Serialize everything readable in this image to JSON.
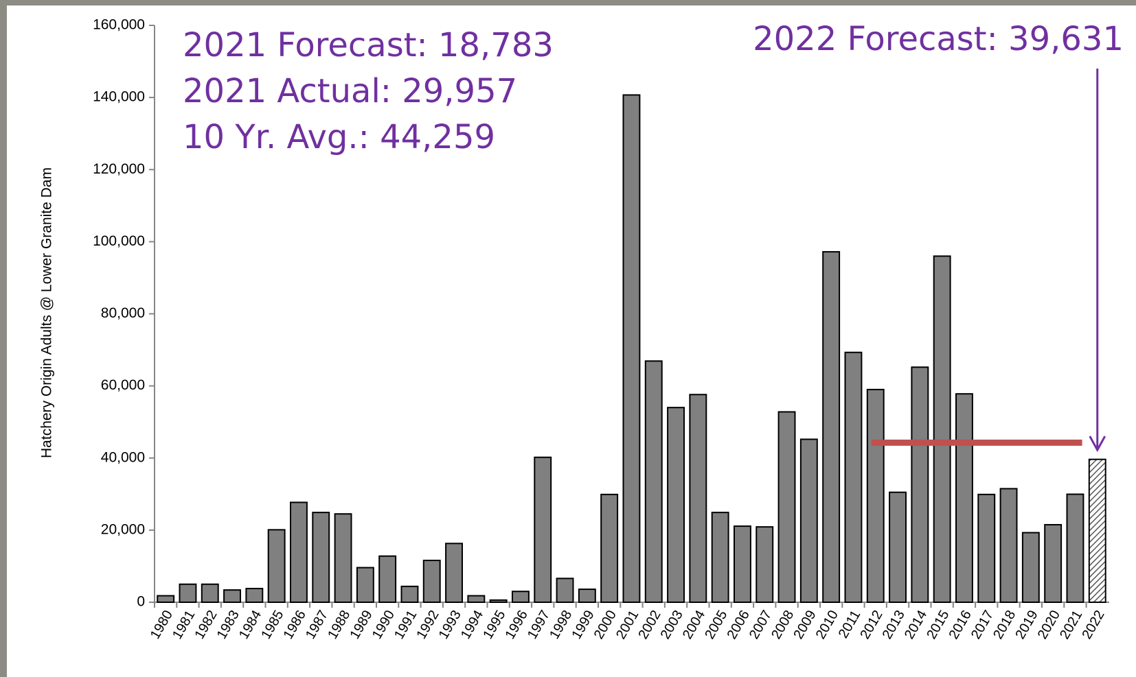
{
  "chart_data": {
    "type": "bar",
    "y_label": "Hatchery Origin Adults @ Lower Granite Dam",
    "categories": [
      "1980",
      "1981",
      "1982",
      "1983",
      "1984",
      "1985",
      "1986",
      "1987",
      "1988",
      "1989",
      "1990",
      "1991",
      "1992",
      "1993",
      "1994",
      "1995",
      "1996",
      "1997",
      "1998",
      "1999",
      "2000",
      "2001",
      "2002",
      "2003",
      "2004",
      "2005",
      "2006",
      "2007",
      "2008",
      "2009",
      "2010",
      "2011",
      "2012",
      "2013",
      "2014",
      "2015",
      "2016",
      "2017",
      "2018",
      "2019",
      "2020",
      "2021",
      "2022"
    ],
    "values": [
      1800,
      5000,
      5000,
      3400,
      3800,
      20100,
      27700,
      24900,
      24500,
      9600,
      12800,
      4400,
      11600,
      16300,
      1800,
      600,
      3000,
      40200,
      6600,
      3600,
      29900,
      140700,
      66900,
      54000,
      57600,
      24900,
      21100,
      20900,
      52800,
      45200,
      97200,
      69300,
      59000,
      30500,
      65200,
      96000,
      57800,
      29900,
      31500,
      19300,
      21500,
      29957,
      39631
    ],
    "color": "#808080",
    "hatched": [
      "2022"
    ],
    "ylim": [
      0,
      160000
    ],
    "yticks": [
      0,
      {
        "value": 20000,
        "label": "20,000"
      },
      {
        "value": 40000,
        "label": "40,000"
      },
      {
        "value": 60000,
        "label": "60,000"
      },
      {
        "value": 80000,
        "label": "80,000"
      },
      {
        "value": 100000,
        "label": "100,000"
      },
      {
        "value": 120000,
        "label": "120,000"
      },
      {
        "value": 140000,
        "label": "140,000"
      },
      {
        "value": 160000,
        "label": "160,000"
      }
    ],
    "annotations": [
      "2021 Forecast: 18,783",
      "2021 Actual: 29,957",
      "10 Yr. Avg.: 44,259"
    ],
    "forecast_annotation": "2022 Forecast: 39,631",
    "average_line": {
      "value": 44259,
      "color": "#c0504d",
      "from": "2012",
      "to": "2022"
    },
    "annotation_color": "#7030a0"
  }
}
